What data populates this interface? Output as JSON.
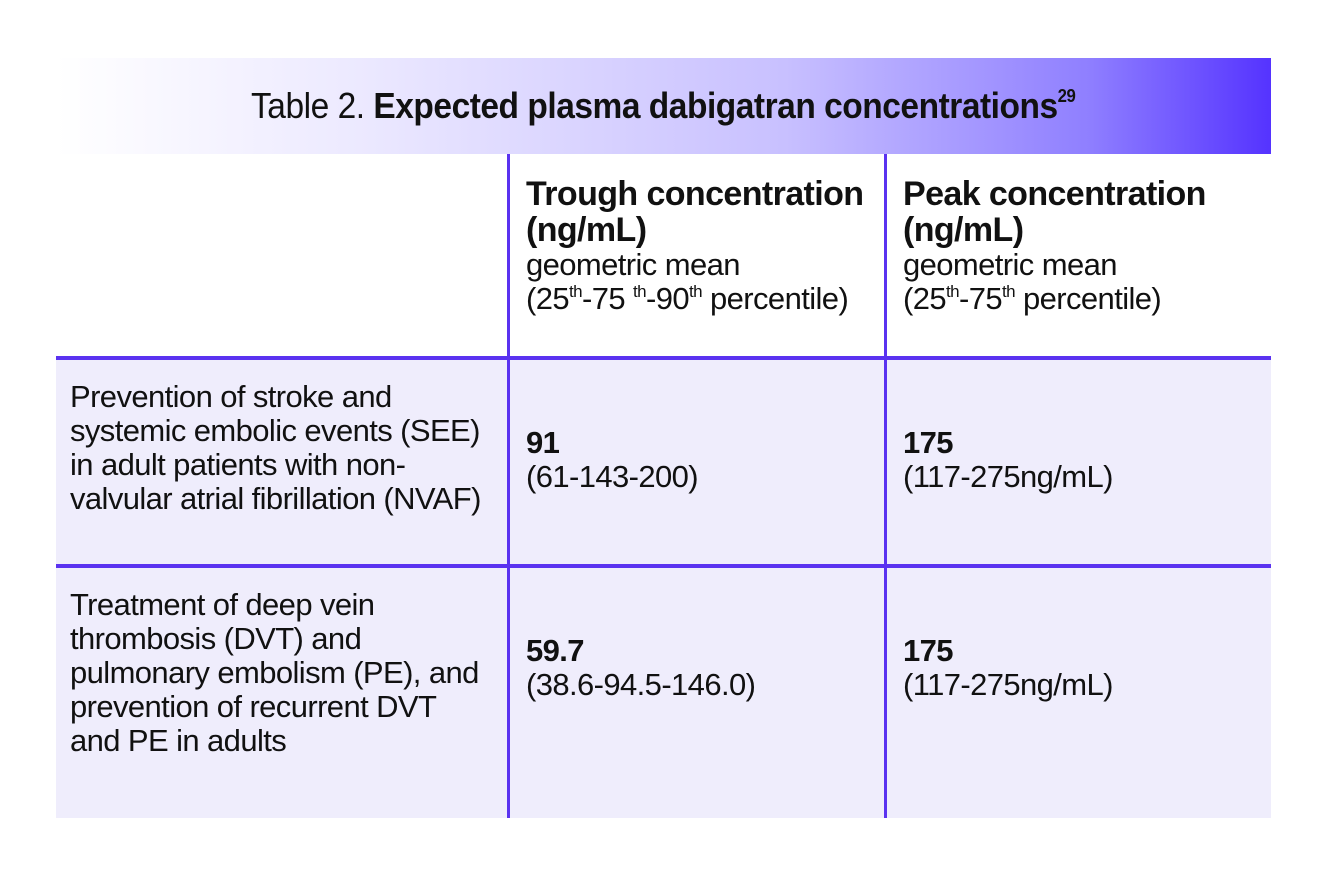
{
  "title": {
    "prefix": "Table 2. ",
    "bold": "Expected plasma dabigatran concentrations",
    "sup": "29"
  },
  "columns": [
    {
      "line1": "Trough concentration",
      "line2": "(ng/mL)",
      "line3": "geometric mean",
      "pct_open": "(25",
      "sup1": "th",
      "pct_mid1": "-75 ",
      "sup2": "th",
      "pct_mid2": "-90",
      "sup3": "th",
      "pct_close": " percentile)"
    },
    {
      "line1": "Peak concentration",
      "line2": "(ng/mL)",
      "line3": "geometric mean",
      "pct_open": "(25",
      "sup1": "th",
      "pct_mid1": "-75",
      "sup2": "th",
      "pct_close": " percentile)"
    }
  ],
  "rows": [
    {
      "label_lines": [
        "Prevention of stroke and",
        "systemic embolic events (SEE)",
        "in adult patients with non-",
        "valvular atrial fibrillation (NVAF)"
      ],
      "trough_value": "91",
      "trough_range": "(61-143-200)",
      "peak_value": "175",
      "peak_range": "(117-275ng/mL)"
    },
    {
      "label_lines": [
        "Treatment of deep vein",
        "thrombosis (DVT) and",
        "pulmonary embolism (PE), and",
        "prevention of recurrent DVT",
        "and PE in adults"
      ],
      "trough_value": "59.7",
      "trough_range": "(38.6-94.5-146.0)",
      "peak_value": "175",
      "peak_range": "(117-275ng/mL)"
    }
  ],
  "colors": {
    "border": "#5a32f0",
    "row_bg": "#efedfc",
    "title_gradient_end": "#5533ff"
  }
}
